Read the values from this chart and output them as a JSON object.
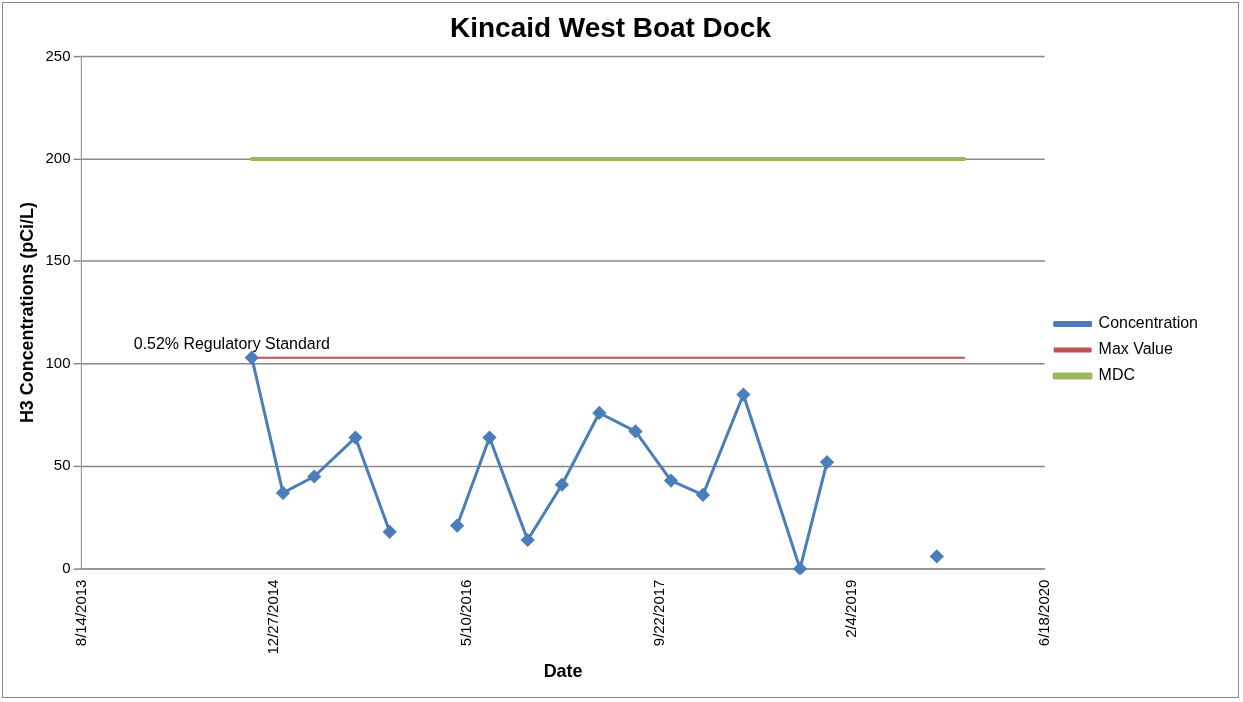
{
  "chart_data": {
    "type": "line",
    "title": "Kincaid West Boat Dock",
    "xlabel": "Date",
    "ylabel": "H3 Concentrations (pCi/L)",
    "xlim": [
      "2013-08-14",
      "2020-06-18"
    ],
    "xticks": [
      {
        "value": "2013-08-14",
        "label": "8/14/2013"
      },
      {
        "value": "2014-12-27",
        "label": "12/27/2014"
      },
      {
        "value": "2016-05-10",
        "label": "5/10/2016"
      },
      {
        "value": "2017-09-22",
        "label": "9/22/2017"
      },
      {
        "value": "2019-02-04",
        "label": "2/4/2019"
      },
      {
        "value": "2020-06-18",
        "label": "6/18/2020"
      }
    ],
    "ylim": [
      0,
      250
    ],
    "yticks": [
      0,
      50,
      100,
      150,
      200,
      250
    ],
    "grid": "y",
    "legend": "right",
    "marker": "diamond",
    "series": [
      {
        "name": "Concentration",
        "color": "#4a7ebb",
        "x": [
          "2014-10-30",
          "2015-01-19",
          "2015-04-10",
          "2015-07-26",
          "2015-10-23",
          "2016-01-22",
          "2016-04-15",
          "2016-07-08",
          "2016-10-15",
          "2017-01-12",
          "2017-04-19",
          "2017-07-22",
          "2017-10-22",
          "2018-01-13",
          "2018-04-28",
          "2018-09-22",
          "2018-12-01",
          "2019-03-10",
          "2019-06-10",
          "2019-09-12"
        ],
        "values": [
          103,
          37,
          45,
          64,
          18,
          null,
          21,
          64,
          14,
          41,
          76,
          67,
          43,
          36,
          85,
          0,
          52,
          null,
          null,
          6
        ]
      },
      {
        "name": "Max Value",
        "color": "#c0504d",
        "marker": "none",
        "x": [
          "2014-10-30",
          "2019-11-22"
        ],
        "values": [
          103,
          103
        ]
      },
      {
        "name": "MDC",
        "color": "#9bbb59",
        "marker": "none",
        "x": [
          "2014-10-30",
          "2019-11-22"
        ],
        "values": [
          200,
          200
        ]
      }
    ],
    "annotations": [
      {
        "text": "0.52% Regulatory Standard",
        "x": "2014-10-30",
        "y": 103
      }
    ]
  }
}
